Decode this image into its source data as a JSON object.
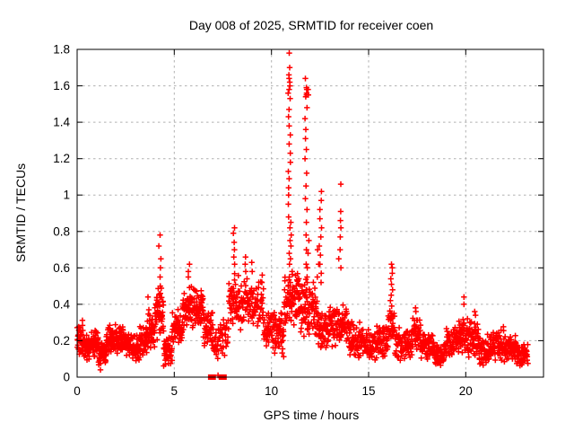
{
  "chart_data": {
    "type": "scatter",
    "title": "Day 008 of 2025, SRMTID for receiver coen",
    "xlabel": "GPS time / hours",
    "ylabel": "SRMTID / TECUs",
    "xlim": [
      0,
      24
    ],
    "ylim": [
      0,
      1.8
    ],
    "grid": true,
    "legend": "none",
    "marker": "plus",
    "colors": {
      "marker": "#ff0000",
      "axis": "#000000",
      "grid": "#b0b0b0",
      "background": "#ffffff"
    },
    "xticks": {
      "values": [
        0,
        5,
        10,
        15,
        20
      ],
      "labels": [
        "0",
        "5",
        "10",
        "15",
        "20"
      ]
    },
    "yticks": {
      "values": [
        0,
        0.2,
        0.4,
        0.6,
        0.8,
        1.0,
        1.2,
        1.4,
        1.6,
        1.8
      ],
      "labels": [
        "0",
        "0.2",
        "0.4",
        "0.6",
        "0.8",
        "1",
        "1.2",
        "1.4",
        "1.6",
        "1.8"
      ]
    },
    "envelope_bins": [
      [
        0.0,
        0.3,
        0.12,
        0.32,
        35
      ],
      [
        0.3,
        0.7,
        0.08,
        0.24,
        45
      ],
      [
        0.7,
        1.1,
        0.1,
        0.28,
        45
      ],
      [
        1.1,
        1.5,
        0.04,
        0.2,
        45
      ],
      [
        1.5,
        2.0,
        0.1,
        0.3,
        55
      ],
      [
        2.0,
        2.4,
        0.12,
        0.3,
        45
      ],
      [
        2.4,
        2.8,
        0.1,
        0.26,
        45
      ],
      [
        2.8,
        3.2,
        0.08,
        0.24,
        45
      ],
      [
        3.2,
        3.6,
        0.1,
        0.3,
        45
      ],
      [
        3.6,
        4.0,
        0.14,
        0.36,
        45
      ],
      [
        4.0,
        4.45,
        0.2,
        0.5,
        50
      ],
      [
        4.45,
        4.9,
        0.05,
        0.25,
        45
      ],
      [
        4.9,
        5.4,
        0.15,
        0.4,
        50
      ],
      [
        5.4,
        5.95,
        0.22,
        0.52,
        55
      ],
      [
        5.95,
        6.5,
        0.24,
        0.5,
        55
      ],
      [
        6.5,
        7.0,
        0.14,
        0.38,
        45
      ],
      [
        7.0,
        7.8,
        0.08,
        0.33,
        50
      ],
      [
        7.8,
        8.3,
        0.25,
        0.58,
        45
      ],
      [
        8.3,
        9.0,
        0.25,
        0.55,
        55
      ],
      [
        9.0,
        9.6,
        0.26,
        0.55,
        50
      ],
      [
        9.6,
        10.15,
        0.15,
        0.38,
        45
      ],
      [
        10.15,
        10.65,
        0.1,
        0.36,
        50
      ],
      [
        10.65,
        11.05,
        0.25,
        0.6,
        40
      ],
      [
        11.05,
        11.5,
        0.25,
        0.6,
        45
      ],
      [
        11.5,
        11.95,
        0.2,
        0.55,
        45
      ],
      [
        11.95,
        12.4,
        0.22,
        0.55,
        40
      ],
      [
        12.4,
        13.0,
        0.12,
        0.38,
        55
      ],
      [
        13.0,
        13.45,
        0.15,
        0.42,
        40
      ],
      [
        13.45,
        14.0,
        0.15,
        0.42,
        50
      ],
      [
        14.0,
        14.6,
        0.1,
        0.32,
        50
      ],
      [
        14.6,
        15.4,
        0.08,
        0.28,
        65
      ],
      [
        15.4,
        16.0,
        0.1,
        0.3,
        50
      ],
      [
        16.0,
        16.35,
        0.18,
        0.4,
        30
      ],
      [
        16.35,
        17.2,
        0.08,
        0.28,
        70
      ],
      [
        17.2,
        17.7,
        0.12,
        0.34,
        45
      ],
      [
        17.7,
        18.4,
        0.08,
        0.26,
        60
      ],
      [
        18.4,
        19.0,
        0.05,
        0.22,
        55
      ],
      [
        19.0,
        19.6,
        0.1,
        0.3,
        50
      ],
      [
        19.6,
        20.1,
        0.12,
        0.36,
        45
      ],
      [
        20.1,
        20.7,
        0.1,
        0.33,
        55
      ],
      [
        20.7,
        21.3,
        0.05,
        0.25,
        55
      ],
      [
        21.3,
        22.0,
        0.08,
        0.28,
        65
      ],
      [
        22.0,
        22.6,
        0.08,
        0.24,
        60
      ],
      [
        22.6,
        23.2,
        0.05,
        0.2,
        50
      ]
    ],
    "spike_columns": [
      {
        "x": 3.7,
        "ys": [
          0.37,
          0.44
        ]
      },
      {
        "x": 4.25,
        "ys": [
          0.45,
          0.5,
          0.55,
          0.6,
          0.65,
          0.72,
          0.78
        ]
      },
      {
        "x": 5.75,
        "ys": [
          0.55,
          0.58,
          0.62
        ]
      },
      {
        "x": 8.05,
        "ys": [
          0.62,
          0.66,
          0.7,
          0.74,
          0.79,
          0.82
        ]
      },
      {
        "x": 8.62,
        "ys": [
          0.58,
          0.62,
          0.66
        ]
      },
      {
        "x": 8.95,
        "ys": [
          0.58,
          0.63
        ]
      },
      {
        "x": 9.5,
        "ys": [
          0.52,
          0.56
        ]
      },
      {
        "x": 10.92,
        "ys": [
          0.55,
          0.62,
          0.68,
          0.75,
          0.82,
          0.88,
          0.95,
          1.0,
          1.04,
          1.09,
          1.13,
          1.18,
          1.23,
          1.28,
          1.33,
          1.38,
          1.43,
          1.47,
          1.53,
          1.56,
          1.58,
          1.6,
          1.62,
          1.64,
          1.66,
          1.7,
          1.78
        ]
      },
      {
        "x": 11.02,
        "ys": [
          0.45,
          0.52,
          0.58,
          0.65,
          0.72,
          0.78,
          0.85
        ]
      },
      {
        "x": 11.78,
        "ys": [
          0.48,
          0.55,
          0.62,
          0.7,
          0.78,
          0.85,
          0.92,
          0.98,
          1.05,
          1.12,
          1.2,
          1.25,
          1.31,
          1.36,
          1.42,
          1.48,
          1.54,
          1.55,
          1.56,
          1.58,
          1.59,
          1.64
        ]
      },
      {
        "x": 11.88,
        "ys": [
          0.52,
          0.6,
          0.68,
          0.75,
          1.55,
          1.58
        ]
      },
      {
        "x": 12.42,
        "ys": [
          0.55,
          0.62,
          0.7
        ]
      },
      {
        "x": 12.52,
        "ys": [
          0.52,
          0.57,
          0.62,
          0.67,
          0.72,
          0.77,
          0.82,
          0.87,
          0.92,
          0.97,
          1.02
        ]
      },
      {
        "x": 13.52,
        "ys": [
          0.6,
          0.65,
          0.7,
          0.77,
          0.82,
          0.86,
          0.91,
          1.06
        ]
      },
      {
        "x": 16.18,
        "ys": [
          0.28,
          0.32,
          0.35,
          0.39,
          0.42,
          0.45,
          0.48,
          0.51,
          0.54,
          0.57,
          0.6,
          0.62
        ]
      },
      {
        "x": 17.45,
        "ys": [
          0.36,
          0.38
        ]
      },
      {
        "x": 19.88,
        "ys": [
          0.4,
          0.44
        ]
      },
      {
        "x": 20.45,
        "ys": [
          0.34,
          0.36
        ]
      }
    ],
    "zero_square_markers": {
      "xs": [
        6.87,
        7.0,
        7.42,
        7.56
      ],
      "y": 0
    },
    "extra_points": [
      [
        1.2,
        0.04
      ],
      [
        7.25,
        0.01
      ]
    ]
  }
}
